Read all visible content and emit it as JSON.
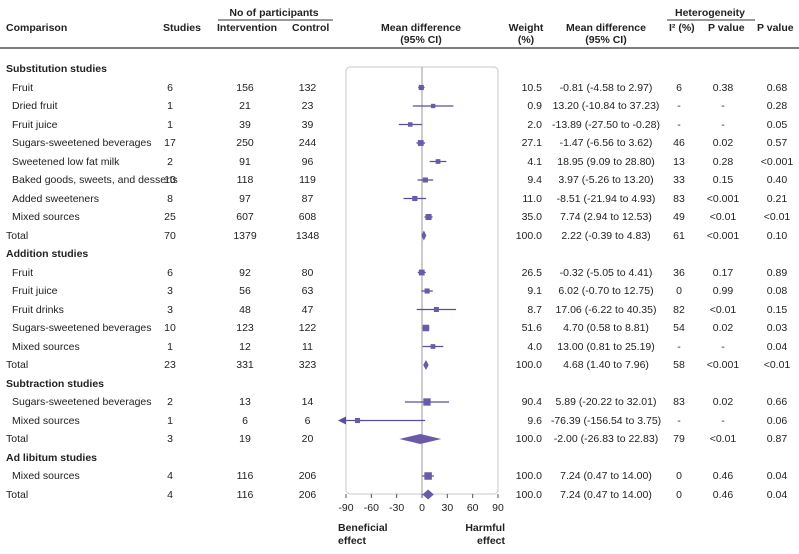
{
  "headers": {
    "comparison": "Comparison",
    "studies": "Studies",
    "no_participants": "No of participants",
    "intervention": "Intervention",
    "control": "Control",
    "mean_diff": "Mean difference",
    "ci": "(95% CI)",
    "weight": "Weight",
    "weight_unit": "(%)",
    "mean_diff2": "Mean difference",
    "ci2": "(95% CI)",
    "heterogeneity": "Heterogeneity",
    "i2": "I² (%)",
    "pvalue_h": "P value",
    "pvalue": "P value"
  },
  "footer": {
    "beneficial": "Beneficial",
    "beneficial2": "effect",
    "harmful": "Harmful",
    "harmful2": "effect"
  },
  "chart_data": {
    "type": "forest",
    "xlim": [
      -90,
      90
    ],
    "xticks": [
      "-90",
      "-60",
      "-30",
      "0",
      "30",
      "60",
      "90"
    ],
    "xtick_values": [
      -90,
      -60,
      -30,
      0,
      30,
      60,
      90
    ],
    "rows": [
      {
        "kind": "section",
        "label": "Substitution studies"
      },
      {
        "kind": "study",
        "label": "Fruit",
        "studies": "6",
        "intervention": "156",
        "control": "132",
        "weight": "10.5",
        "md_text": "-0.81 (-4.58 to 2.97)",
        "i2": "6",
        "p_het": "0.38",
        "p": "0.68",
        "md": -0.81,
        "lo": -4.58,
        "hi": 2.97,
        "w": 10.5
      },
      {
        "kind": "study",
        "label": "Dried fruit",
        "studies": "1",
        "intervention": "21",
        "control": "23",
        "weight": "0.9",
        "md_text": "13.20 (-10.84 to 37.23)",
        "i2": "-",
        "p_het": "-",
        "p": "0.28",
        "md": 13.2,
        "lo": -10.84,
        "hi": 37.23,
        "w": 0.9
      },
      {
        "kind": "study",
        "label": "Fruit juice",
        "studies": "1",
        "intervention": "39",
        "control": "39",
        "weight": "2.0",
        "md_text": "-13.89 (-27.50 to -0.28)",
        "i2": "-",
        "p_het": "-",
        "p": "0.05",
        "md": -13.89,
        "lo": -27.5,
        "hi": -0.28,
        "w": 2.0
      },
      {
        "kind": "study",
        "label": "Sugars-sweetened beverages",
        "studies": "17",
        "intervention": "250",
        "control": "244",
        "weight": "27.1",
        "md_text": "-1.47 (-6.56 to 3.62)",
        "i2": "46",
        "p_het": "0.02",
        "p": "0.57",
        "md": -1.47,
        "lo": -6.56,
        "hi": 3.62,
        "w": 27.1
      },
      {
        "kind": "study",
        "label": "Sweetened low fat milk",
        "studies": "2",
        "intervention": "91",
        "control": "96",
        "weight": "4.1",
        "md_text": "18.95 (9.09 to 28.80)",
        "i2": "13",
        "p_het": "0.28",
        "p": "<0.001",
        "md": 18.95,
        "lo": 9.09,
        "hi": 28.8,
        "w": 4.1
      },
      {
        "kind": "study",
        "label": "Baked goods, sweets, and desserts",
        "studies": "10",
        "intervention": "118",
        "control": "119",
        "weight": "9.4",
        "md_text": "3.97 (-5.26 to 13.20)",
        "i2": "33",
        "p_het": "0.15",
        "p": "0.40",
        "md": 3.97,
        "lo": -5.26,
        "hi": 13.2,
        "w": 9.4
      },
      {
        "kind": "study",
        "label": "Added sweeteners",
        "studies": "8",
        "intervention": "97",
        "control": "87",
        "weight": "11.0",
        "md_text": "-8.51 (-21.94 to 4.93)",
        "i2": "83",
        "p_het": "<0.001",
        "p": "0.21",
        "md": -8.51,
        "lo": -21.94,
        "hi": 4.93,
        "w": 11.0
      },
      {
        "kind": "study",
        "label": "Mixed sources",
        "studies": "25",
        "intervention": "607",
        "control": "608",
        "weight": "35.0",
        "md_text": "7.74 (2.94 to 12.53)",
        "i2": "49",
        "p_het": "<0.01",
        "p": "<0.01",
        "md": 7.74,
        "lo": 2.94,
        "hi": 12.53,
        "w": 35.0
      },
      {
        "kind": "total",
        "label": "Total",
        "studies": "70",
        "intervention": "1379",
        "control": "1348",
        "weight": "100.0",
        "md_text": "2.22 (-0.39 to 4.83)",
        "i2": "61",
        "p_het": "<0.001",
        "p": "0.10",
        "md": 2.22,
        "lo": -0.39,
        "hi": 4.83
      },
      {
        "kind": "section",
        "label": "Addition studies"
      },
      {
        "kind": "study",
        "label": "Fruit",
        "studies": "6",
        "intervention": "92",
        "control": "80",
        "weight": "26.5",
        "md_text": "-0.32 (-5.05 to 4.41)",
        "i2": "36",
        "p_het": "0.17",
        "p": "0.89",
        "md": -0.32,
        "lo": -5.05,
        "hi": 4.41,
        "w": 26.5
      },
      {
        "kind": "study",
        "label": "Fruit juice",
        "studies": "3",
        "intervention": "56",
        "control": "63",
        "weight": "9.1",
        "md_text": "6.02 (-0.70 to 12.75)",
        "i2": "0",
        "p_het": "0.99",
        "p": "0.08",
        "md": 6.02,
        "lo": -0.7,
        "hi": 12.75,
        "w": 9.1
      },
      {
        "kind": "study",
        "label": "Fruit drinks",
        "studies": "3",
        "intervention": "48",
        "control": "47",
        "weight": "8.7",
        "md_text": "17.06 (-6.22 to 40.35)",
        "i2": "82",
        "p_het": "<0.01",
        "p": "0.15",
        "md": 17.06,
        "lo": -6.22,
        "hi": 40.35,
        "w": 8.7
      },
      {
        "kind": "study",
        "label": "Sugars-sweetened beverages",
        "studies": "10",
        "intervention": "123",
        "control": "122",
        "weight": "51.6",
        "md_text": "4.70 (0.58 to 8.81)",
        "i2": "54",
        "p_het": "0.02",
        "p": "0.03",
        "md": 4.7,
        "lo": 0.58,
        "hi": 8.81,
        "w": 51.6
      },
      {
        "kind": "study",
        "label": "Mixed sources",
        "studies": "1",
        "intervention": "12",
        "control": "11",
        "weight": "4.0",
        "md_text": "13.00 (0.81 to 25.19)",
        "i2": "-",
        "p_het": "-",
        "p": "0.04",
        "md": 13.0,
        "lo": 0.81,
        "hi": 25.19,
        "w": 4.0
      },
      {
        "kind": "total",
        "label": "Total",
        "studies": "23",
        "intervention": "331",
        "control": "323",
        "weight": "100.0",
        "md_text": "4.68 (1.40 to 7.96)",
        "i2": "58",
        "p_het": "<0.001",
        "p": "<0.01",
        "md": 4.68,
        "lo": 1.4,
        "hi": 7.96
      },
      {
        "kind": "section",
        "label": "Subtraction studies"
      },
      {
        "kind": "study",
        "label": "Sugars-sweetened beverages",
        "studies": "2",
        "intervention": "13",
        "control": "14",
        "weight": "90.4",
        "md_text": "5.89 (-20.22 to 32.01)",
        "i2": "83",
        "p_het": "0.02",
        "p": "0.66",
        "md": 5.89,
        "lo": -20.22,
        "hi": 32.01,
        "w": 90.4
      },
      {
        "kind": "study",
        "label": "Mixed sources",
        "studies": "1",
        "intervention": "6",
        "control": "6",
        "weight": "9.6",
        "md_text": "-76.39 (-156.54 to 3.75)",
        "i2": "-",
        "p_het": "-",
        "p": "0.06",
        "md": -76.39,
        "lo": -156.54,
        "hi": 3.75,
        "w": 9.6
      },
      {
        "kind": "total",
        "label": "Total",
        "studies": "3",
        "intervention": "19",
        "control": "20",
        "weight": "100.0",
        "md_text": "-2.00 (-26.83 to 22.83)",
        "i2": "79",
        "p_het": "<0.01",
        "p": "0.87",
        "md": -2.0,
        "lo": -26.83,
        "hi": 22.83
      },
      {
        "kind": "section",
        "label": "Ad libitum studies"
      },
      {
        "kind": "study",
        "label": "Mixed sources",
        "studies": "4",
        "intervention": "116",
        "control": "206",
        "weight": "100.0",
        "md_text": "7.24 (0.47 to 14.00)",
        "i2": "0",
        "p_het": "0.46",
        "p": "0.04",
        "md": 7.24,
        "lo": 0.47,
        "hi": 14.0,
        "w": 100.0
      },
      {
        "kind": "total",
        "label": "Total",
        "studies": "4",
        "intervention": "116",
        "control": "206",
        "weight": "100.0",
        "md_text": "7.24 (0.47 to 14.00)",
        "i2": "0",
        "p_het": "0.46",
        "p": "0.04",
        "md": 7.24,
        "lo": 0.47,
        "hi": 14.0
      }
    ],
    "colors": {
      "marker": "#6a5aa8",
      "line": "#5a4d9c",
      "panel_border": "#c9c9c9",
      "rule": "#333333"
    }
  }
}
